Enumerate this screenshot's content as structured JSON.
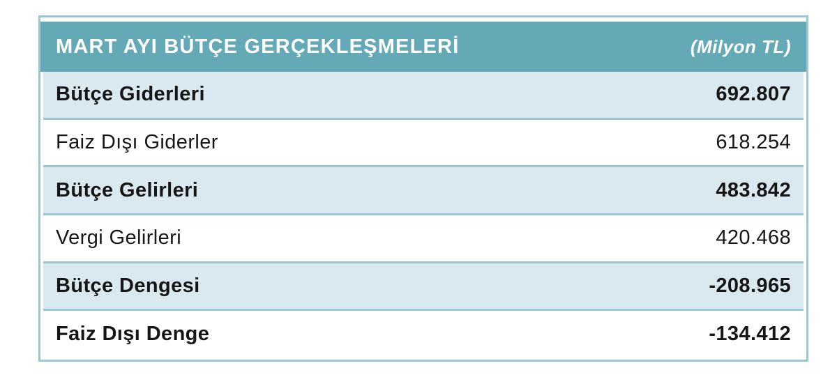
{
  "chart_data": {
    "type": "table",
    "title": "MART AYI BÜTÇE GERÇEKLEŞMELERİ",
    "unit_label": "(Milyon TL)",
    "categories": [
      "Bütçe Giderleri",
      "Faiz Dışı Giderler",
      "Bütçe Gelirleri",
      "Vergi Gelirleri",
      "Bütçe Dengesi",
      "Faiz Dışı Denge"
    ],
    "values": [
      692.807,
      618.254,
      483.842,
      420.468,
      -208.965,
      -134.412
    ]
  },
  "table": {
    "title": "MART AYI BÜTÇE GERÇEKLEŞMELERİ",
    "unit_label": "(Milyon TL)",
    "rows": [
      {
        "label": "Bütçe Giderleri",
        "value": "692.807",
        "bold": true,
        "shaded": true
      },
      {
        "label": "Faiz Dışı Giderler",
        "value": "618.254",
        "bold": false,
        "shaded": false
      },
      {
        "label": "Bütçe Gelirleri",
        "value": "483.842",
        "bold": true,
        "shaded": true
      },
      {
        "label": "Vergi Gelirleri",
        "value": "420.468",
        "bold": false,
        "shaded": false
      },
      {
        "label": "Bütçe Dengesi",
        "value": "-208.965",
        "bold": true,
        "shaded": true
      },
      {
        "label": "Faiz Dışı Denge",
        "value": "-134.412",
        "bold": true,
        "shaded": false
      }
    ],
    "colors": {
      "header_bg": "#64aab6",
      "header_text": "#ffffff",
      "shaded_row_bg": "#d9e9ef",
      "plain_row_bg": "#ffffff",
      "grid": "#9cc7d2",
      "text": "#161616"
    }
  }
}
